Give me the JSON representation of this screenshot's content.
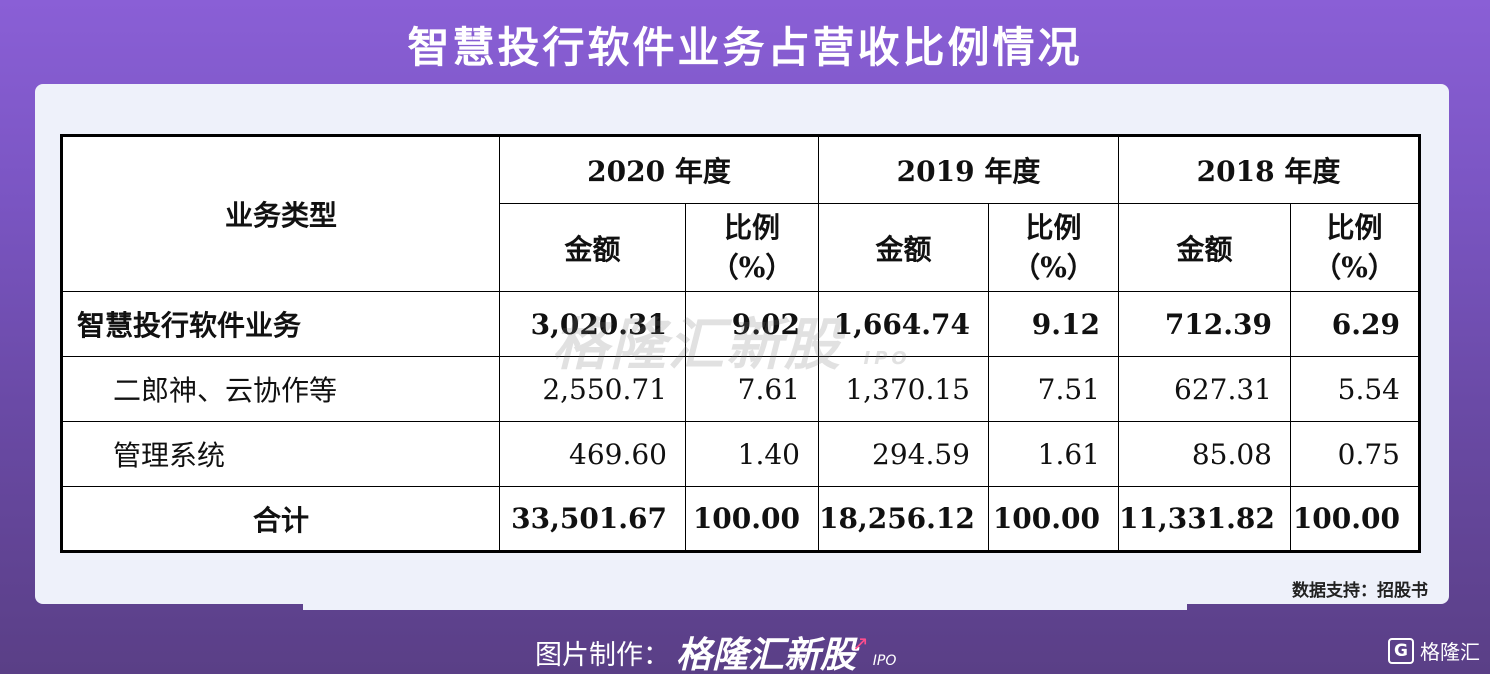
{
  "title": "智慧投行软件业务占营收比例情况",
  "table": {
    "type_header": "业务类型",
    "years": [
      "2020 年度",
      "2019 年度",
      "2018 年度"
    ],
    "amount_label": "金额",
    "ratio_label": "比例",
    "ratio_unit": "（%）",
    "rows": [
      {
        "label": "智慧投行软件业务",
        "values": [
          "3,020.31",
          "9.02",
          "1,664.74",
          "9.12",
          "712.39",
          "6.29"
        ]
      },
      {
        "label": "二郎神、云协作等",
        "values": [
          "2,550.71",
          "7.61",
          "1,370.15",
          "7.51",
          "627.31",
          "5.54"
        ]
      },
      {
        "label": "管理系统",
        "values": [
          "469.60",
          "1.40",
          "294.59",
          "1.61",
          "85.08",
          "0.75"
        ]
      },
      {
        "label": "合计",
        "values": [
          "33,501.67",
          "100.00",
          "18,256.12",
          "100.00",
          "11,331.82",
          "100.00"
        ]
      }
    ]
  },
  "source": "数据支持：招股书",
  "watermark": {
    "text": "格隆汇新股",
    "suffix": "IPO"
  },
  "credit": {
    "prefix": "图片制作：",
    "brand": "格隆汇新股",
    "ipo": "IPO"
  },
  "corner_logo": {
    "text": "格隆汇",
    "icon": "G"
  }
}
